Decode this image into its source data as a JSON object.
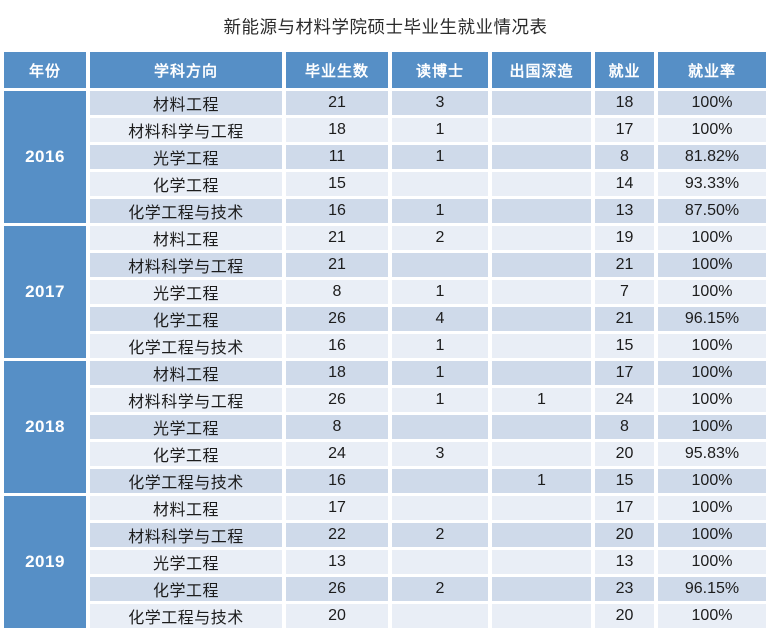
{
  "title": "新能源与材料学院硕士毕业生就业情况表",
  "columns": [
    "年份",
    "学科方向",
    "毕业生数",
    "读博士",
    "出国深造",
    "就业",
    "就业率"
  ],
  "groups": [
    {
      "year": "2016",
      "rows": [
        [
          "材料工程",
          "21",
          "3",
          "",
          "18",
          "100%"
        ],
        [
          "材料科学与工程",
          "18",
          "1",
          "",
          "17",
          "100%"
        ],
        [
          "光学工程",
          "11",
          "1",
          "",
          "8",
          "81.82%"
        ],
        [
          "化学工程",
          "15",
          "",
          "",
          "14",
          "93.33%"
        ],
        [
          "化学工程与技术",
          "16",
          "1",
          "",
          "13",
          "87.50%"
        ]
      ]
    },
    {
      "year": "2017",
      "rows": [
        [
          "材料工程",
          "21",
          "2",
          "",
          "19",
          "100%"
        ],
        [
          "材料科学与工程",
          "21",
          "",
          "",
          "21",
          "100%"
        ],
        [
          "光学工程",
          "8",
          "1",
          "",
          "7",
          "100%"
        ],
        [
          "化学工程",
          "26",
          "4",
          "",
          "21",
          "96.15%"
        ],
        [
          "化学工程与技术",
          "16",
          "1",
          "",
          "15",
          "100%"
        ]
      ]
    },
    {
      "year": "2018",
      "rows": [
        [
          "材料工程",
          "18",
          "1",
          "",
          "17",
          "100%"
        ],
        [
          "材料科学与工程",
          "26",
          "1",
          "1",
          "24",
          "100%"
        ],
        [
          "光学工程",
          "8",
          "",
          "",
          "8",
          "100%"
        ],
        [
          "化学工程",
          "24",
          "3",
          "",
          "20",
          "95.83%"
        ],
        [
          "化学工程与技术",
          "16",
          "",
          "1",
          "15",
          "100%"
        ]
      ]
    },
    {
      "year": "2019",
      "rows": [
        [
          "材料工程",
          "17",
          "",
          "",
          "17",
          "100%"
        ],
        [
          "材料科学与工程",
          "22",
          "2",
          "",
          "20",
          "100%"
        ],
        [
          "光学工程",
          "13",
          "",
          "",
          "13",
          "100%"
        ],
        [
          "化学工程",
          "26",
          "2",
          "",
          "23",
          "96.15%"
        ],
        [
          "化学工程与技术",
          "20",
          "",
          "",
          "20",
          "100%"
        ]
      ]
    }
  ],
  "colors": {
    "header_blue": "#568FC6",
    "row_dark": "#CFDAEA",
    "row_light": "#E9EEF6",
    "header_text": "#FFFFFF",
    "body_text": "#1C1C1C"
  },
  "chart_data": {
    "type": "table",
    "title": "新能源与材料学院硕士毕业生就业情况表",
    "columns": [
      "年份",
      "学科方向",
      "毕业生数",
      "读博士",
      "出国深造",
      "就业",
      "就业率"
    ],
    "rows": [
      [
        "2016",
        "材料工程",
        "21",
        "3",
        "",
        "18",
        "100%"
      ],
      [
        "2016",
        "材料科学与工程",
        "18",
        "1",
        "",
        "17",
        "100%"
      ],
      [
        "2016",
        "光学工程",
        "11",
        "1",
        "",
        "8",
        "81.82%"
      ],
      [
        "2016",
        "化学工程",
        "15",
        "",
        "",
        "14",
        "93.33%"
      ],
      [
        "2016",
        "化学工程与技术",
        "16",
        "1",
        "",
        "13",
        "87.50%"
      ],
      [
        "2017",
        "材料工程",
        "21",
        "2",
        "",
        "19",
        "100%"
      ],
      [
        "2017",
        "材料科学与工程",
        "21",
        "",
        "",
        "21",
        "100%"
      ],
      [
        "2017",
        "光学工程",
        "8",
        "1",
        "",
        "7",
        "100%"
      ],
      [
        "2017",
        "化学工程",
        "26",
        "4",
        "",
        "21",
        "96.15%"
      ],
      [
        "2017",
        "化学工程与技术",
        "16",
        "1",
        "",
        "15",
        "100%"
      ],
      [
        "2018",
        "材料工程",
        "18",
        "1",
        "",
        "17",
        "100%"
      ],
      [
        "2018",
        "材料科学与工程",
        "26",
        "1",
        "1",
        "24",
        "100%"
      ],
      [
        "2018",
        "光学工程",
        "8",
        "",
        "",
        "8",
        "100%"
      ],
      [
        "2018",
        "化学工程",
        "24",
        "3",
        "",
        "20",
        "95.83%"
      ],
      [
        "2018",
        "化学工程与技术",
        "16",
        "",
        "1",
        "15",
        "100%"
      ],
      [
        "2019",
        "材料工程",
        "17",
        "",
        "",
        "17",
        "100%"
      ],
      [
        "2019",
        "材料科学与工程",
        "22",
        "2",
        "",
        "20",
        "100%"
      ],
      [
        "2019",
        "光学工程",
        "13",
        "",
        "",
        "13",
        "100%"
      ],
      [
        "2019",
        "化学工程",
        "26",
        "2",
        "",
        "23",
        "96.15%"
      ],
      [
        "2019",
        "化学工程与技术",
        "20",
        "",
        "",
        "20",
        "100%"
      ]
    ],
    "layout": {
      "merged_year_column": true,
      "alternating_row_shading": true,
      "gridlines": "white-gaps"
    }
  }
}
